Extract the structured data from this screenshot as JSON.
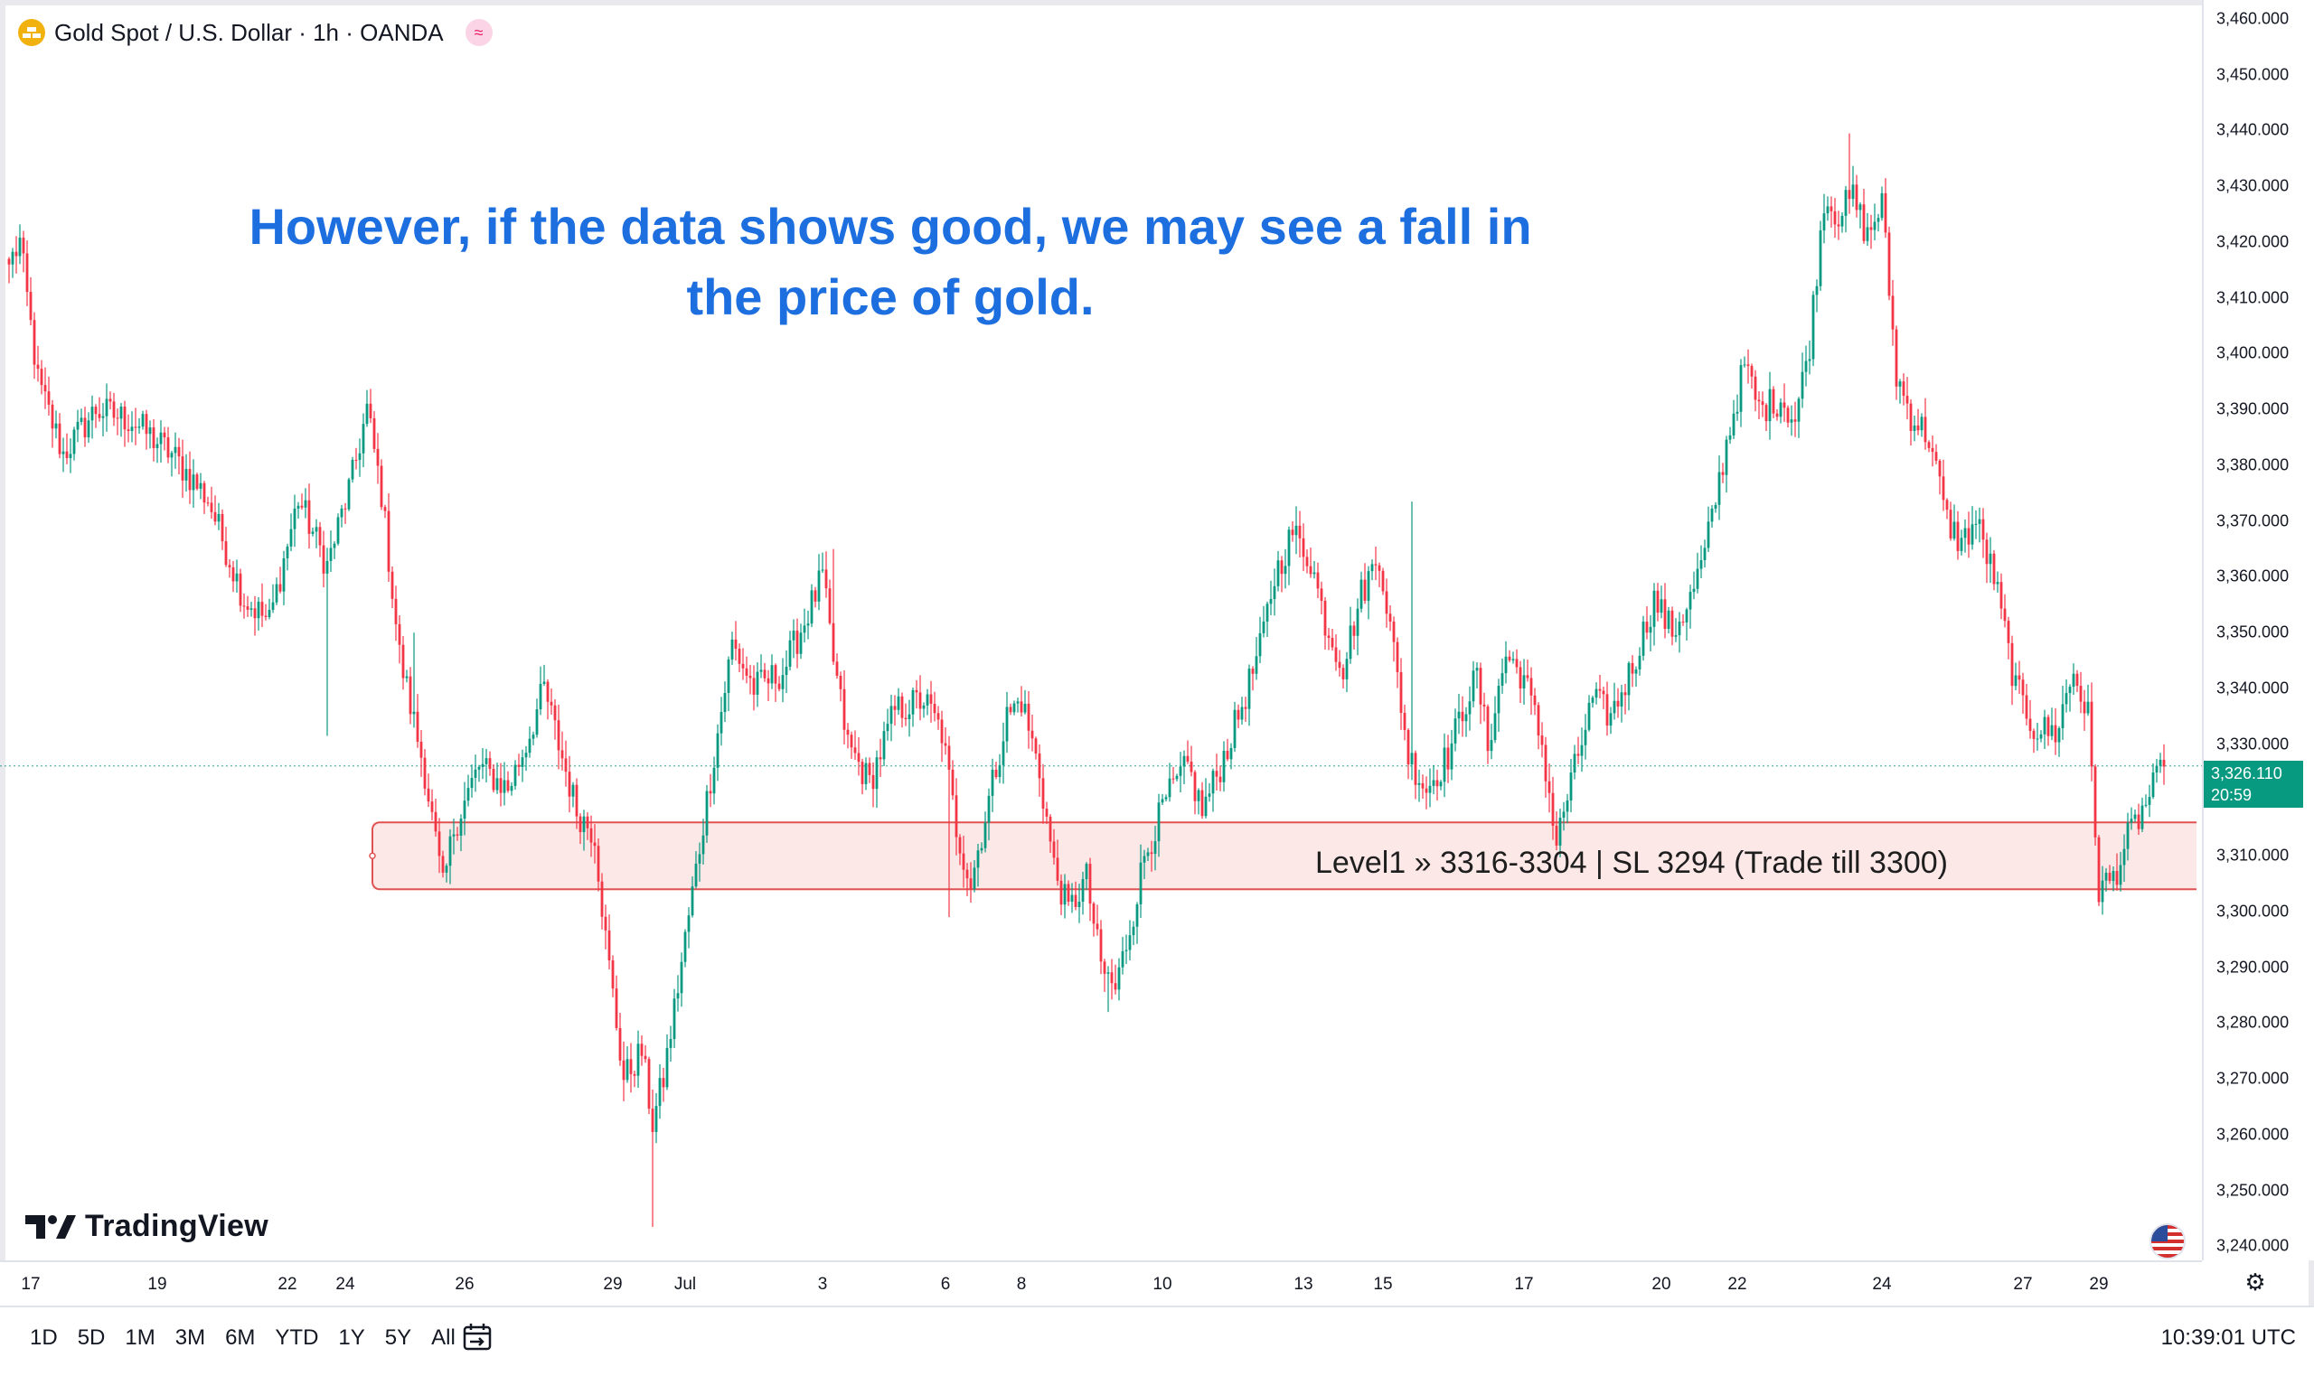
{
  "header": {
    "symbol_title": "Gold Spot / U.S. Dollar · 1h · OANDA",
    "symbol_icon": "gold-bars-icon",
    "indicator_icon": "approx-icon"
  },
  "annotation": {
    "line1": "However, if the data shows good, we may see a fall in",
    "line2": "the price of gold."
  },
  "zone": {
    "label": "Level1 » 3316-3304 | SL 3294 (Trade till 3300)",
    "low": 3304,
    "high": 3316,
    "fill": "#fde4e4",
    "stroke": "#e05252"
  },
  "last_price": {
    "price": "3,326.110",
    "countdown": "20:59",
    "value": 3326.11
  },
  "logo": {
    "text": "TradingView"
  },
  "bottom_bar": {
    "ranges": [
      "1D",
      "5D",
      "1M",
      "3M",
      "6M",
      "YTD",
      "1Y",
      "5Y",
      "All"
    ],
    "clock": "10:39:01 UTC"
  },
  "colors": {
    "up": "#089981",
    "down": "#f23645",
    "accent": "#1d6fe0"
  },
  "chart_data": {
    "type": "candlestick",
    "title": "",
    "ylim": [
      3237,
      3462
    ],
    "y_ticks": [
      "3,460.000",
      "3,450.000",
      "3,440.000",
      "3,430.000",
      "3,420.000",
      "3,410.000",
      "3,400.000",
      "3,390.000",
      "3,380.000",
      "3,370.000",
      "3,360.000",
      "3,350.000",
      "3,340.000",
      "3,330.000",
      "3,320.000",
      "3,310.000",
      "3,300.000",
      "3,290.000",
      "3,280.000",
      "3,270.000",
      "3,260.000",
      "3,250.000",
      "3,240.000"
    ],
    "y_tick_values": [
      3460,
      3450,
      3440,
      3430,
      3420,
      3410,
      3400,
      3390,
      3380,
      3370,
      3360,
      3350,
      3340,
      3330,
      3320,
      3310,
      3300,
      3290,
      3280,
      3270,
      3260,
      3250,
      3240
    ],
    "x_ticks": [
      "17",
      "19",
      "22",
      "24",
      "26",
      "29",
      "Jul",
      "3",
      "6",
      "8",
      "10",
      "13",
      "15",
      "17",
      "20",
      "22",
      "24",
      "27",
      "29"
    ],
    "x_tick_index": [
      6,
      41,
      77,
      93,
      126,
      167,
      187,
      225,
      259,
      280,
      319,
      358,
      380,
      419,
      457,
      478,
      518,
      557,
      578
    ],
    "anchors": [
      [
        0,
        3416
      ],
      [
        3,
        3420
      ],
      [
        8,
        3395
      ],
      [
        15,
        3382
      ],
      [
        24,
        3390
      ],
      [
        34,
        3388
      ],
      [
        45,
        3382
      ],
      [
        55,
        3374
      ],
      [
        65,
        3356
      ],
      [
        72,
        3352
      ],
      [
        80,
        3374
      ],
      [
        88,
        3362
      ],
      [
        95,
        3378
      ],
      [
        99,
        3390
      ],
      [
        103,
        3375
      ],
      [
        108,
        3346
      ],
      [
        115,
        3325
      ],
      [
        120,
        3304
      ],
      [
        123,
        3315
      ],
      [
        130,
        3326
      ],
      [
        138,
        3322
      ],
      [
        143,
        3330
      ],
      [
        148,
        3340
      ],
      [
        152,
        3330
      ],
      [
        157,
        3318
      ],
      [
        162,
        3314
      ],
      [
        165,
        3295
      ],
      [
        170,
        3270
      ],
      [
        175,
        3275
      ],
      [
        178,
        3262
      ],
      [
        181,
        3270
      ],
      [
        187,
        3295
      ],
      [
        193,
        3320
      ],
      [
        200,
        3348
      ],
      [
        206,
        3340
      ],
      [
        214,
        3343
      ],
      [
        220,
        3352
      ],
      [
        225,
        3360
      ],
      [
        228,
        3345
      ],
      [
        232,
        3330
      ],
      [
        238,
        3323
      ],
      [
        245,
        3336
      ],
      [
        253,
        3338
      ],
      [
        258,
        3332
      ],
      [
        262,
        3315
      ],
      [
        266,
        3305
      ],
      [
        271,
        3320
      ],
      [
        276,
        3335
      ],
      [
        280,
        3338
      ],
      [
        285,
        3325
      ],
      [
        289,
        3308
      ],
      [
        293,
        3300
      ],
      [
        298,
        3306
      ],
      [
        302,
        3290
      ],
      [
        306,
        3286
      ],
      [
        311,
        3300
      ],
      [
        314,
        3310
      ],
      [
        320,
        3320
      ],
      [
        326,
        3326
      ],
      [
        330,
        3318
      ],
      [
        335,
        3326
      ],
      [
        340,
        3335
      ],
      [
        346,
        3347
      ],
      [
        350,
        3360
      ],
      [
        355,
        3368
      ],
      [
        360,
        3363
      ],
      [
        364,
        3352
      ],
      [
        369,
        3344
      ],
      [
        374,
        3357
      ],
      [
        379,
        3364
      ],
      [
        384,
        3342
      ],
      [
        387,
        3328
      ],
      [
        392,
        3322
      ],
      [
        398,
        3328
      ],
      [
        403,
        3338
      ],
      [
        406,
        3342
      ],
      [
        409,
        3330
      ],
      [
        414,
        3346
      ],
      [
        419,
        3342
      ],
      [
        424,
        3330
      ],
      [
        428,
        3312
      ],
      [
        430,
        3318
      ],
      [
        434,
        3328
      ],
      [
        438,
        3338
      ],
      [
        443,
        3335
      ],
      [
        449,
        3344
      ],
      [
        455,
        3356
      ],
      [
        460,
        3350
      ],
      [
        465,
        3356
      ],
      [
        469,
        3364
      ],
      [
        475,
        3384
      ],
      [
        480,
        3398
      ],
      [
        484,
        3390
      ],
      [
        490,
        3392
      ],
      [
        494,
        3388
      ],
      [
        498,
        3402
      ],
      [
        502,
        3428
      ],
      [
        506,
        3425
      ],
      [
        510,
        3428
      ],
      [
        514,
        3421
      ],
      [
        518,
        3427
      ],
      [
        522,
        3396
      ],
      [
        526,
        3389
      ],
      [
        531,
        3385
      ],
      [
        536,
        3370
      ],
      [
        540,
        3366
      ],
      [
        544,
        3370
      ],
      [
        549,
        3360
      ],
      [
        555,
        3340
      ],
      [
        560,
        3333
      ],
      [
        566,
        3332
      ],
      [
        571,
        3343
      ],
      [
        575,
        3335
      ],
      [
        578,
        3304
      ],
      [
        582,
        3306
      ],
      [
        586,
        3313
      ],
      [
        590,
        3318
      ],
      [
        593,
        3322
      ],
      [
        596,
        3326
      ]
    ]
  }
}
